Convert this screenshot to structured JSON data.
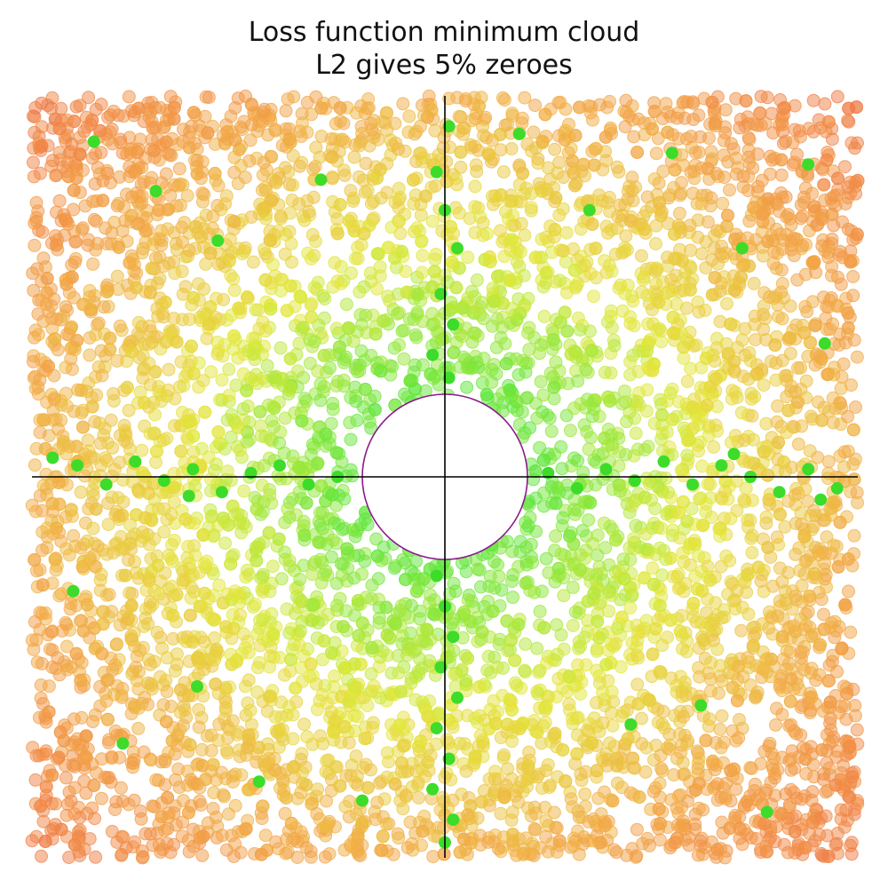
{
  "chart_data": {
    "type": "scatter",
    "title": "Loss function minimum cloud",
    "subtitle": "L2 gives 5% zeroes",
    "xlabel": "",
    "ylabel": "",
    "xlim": [
      -1,
      1
    ],
    "ylim": [
      -1,
      1
    ],
    "grid": false,
    "legend": "none",
    "axes": {
      "x_line_at": 0,
      "y_line_at": 0
    },
    "excluded_disk": {
      "center": [
        0,
        0
      ],
      "radius": 0.2,
      "edge_color": "#8b1a8b"
    },
    "background_cloud": {
      "point_count": 6000,
      "alpha": 0.5,
      "color_scale": [
        "#5ee63a",
        "#e3e83a",
        "#f2a945",
        "#f07a45"
      ],
      "color_by": "distance from origin"
    },
    "zero_points": {
      "color": "#3ddc2a",
      "share": "5%",
      "x": [
        -0.89,
        -0.82,
        -0.75,
        -0.68,
        -0.61,
        -0.54,
        -0.47,
        -0.4,
        -0.33,
        -0.26,
        0.25,
        0.32,
        0.39,
        0.46,
        0.53,
        0.6,
        0.67,
        0.74,
        0.81,
        0.88,
        0.95,
        -0.95,
        -0.62,
        0.7,
        0.91,
        0.01,
        -0.02,
        0.0,
        0.03,
        -0.01,
        0.02,
        -0.03,
        0.01,
        -0.02,
        0.0,
        0.02,
        -0.01,
        0.03,
        -0.02,
        0.01,
        -0.03,
        0.02,
        0.0,
        -0.85,
        -0.7,
        -0.55,
        -0.3,
        0.35,
        0.55,
        0.72,
        0.88,
        -0.78,
        -0.45,
        0.45,
        0.78,
        -0.6,
        0.62,
        -0.9,
        0.92,
        -0.2,
        0.18
      ],
      "y": [
        0.03,
        -0.02,
        0.04,
        -0.01,
        0.02,
        -0.04,
        0.01,
        0.03,
        -0.02,
        0.0,
        0.01,
        -0.03,
        0.02,
        -0.01,
        0.04,
        -0.02,
        0.03,
        0.0,
        -0.04,
        0.02,
        -0.03,
        0.05,
        -0.05,
        0.06,
        -0.06,
        0.92,
        0.8,
        0.7,
        0.6,
        0.48,
        0.4,
        0.32,
        0.26,
        -0.26,
        -0.34,
        -0.42,
        -0.5,
        -0.58,
        -0.66,
        -0.74,
        -0.82,
        -0.9,
        -0.96,
        0.88,
        0.75,
        0.62,
        0.78,
        0.7,
        0.85,
        0.6,
        0.82,
        -0.7,
        -0.8,
        -0.65,
        -0.88,
        -0.55,
        -0.6,
        -0.3,
        0.35,
        -0.85,
        0.9
      ]
    }
  }
}
